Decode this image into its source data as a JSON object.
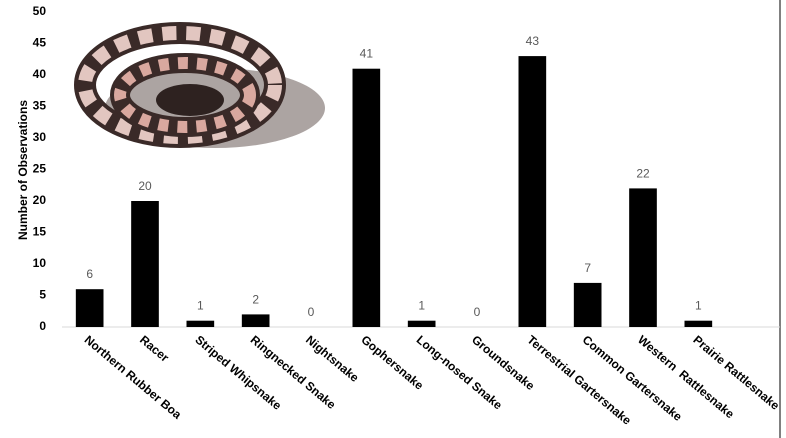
{
  "chart_data": {
    "type": "bar",
    "y_label": "Number of Observations",
    "categories": [
      "Northern Rubber Boa",
      "Racer",
      "Striped Whipsnake",
      "Ringnecked Snake",
      "Nightsnake",
      "Gophersnake",
      "Long-nosed Snake",
      "Groundsnake",
      "Terrestrial Gartersnake",
      "Common Gartersnake",
      "Western  Rattlesnake",
      "Prairie Rattlesnake"
    ],
    "values": [
      6,
      20,
      1,
      2,
      0,
      41,
      1,
      0,
      43,
      7,
      22,
      1
    ],
    "color": "#000000",
    "ylim": [
      0,
      50
    ],
    "yticks": [
      0,
      5,
      10,
      15,
      20,
      25,
      30,
      35,
      40,
      45,
      50
    ],
    "grid": false
  }
}
